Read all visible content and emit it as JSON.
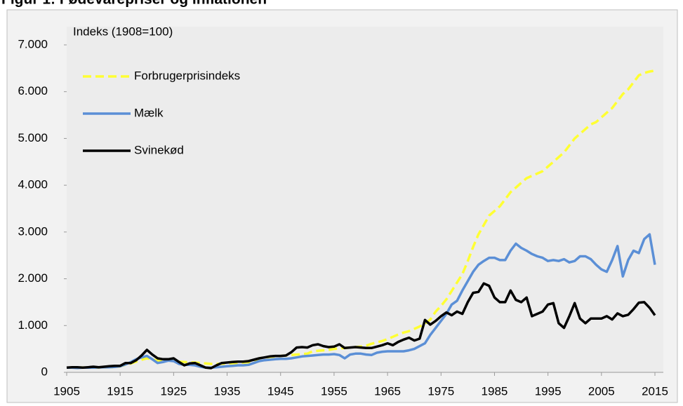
{
  "chart_data": {
    "type": "line",
    "title": "Figur 1: Fødevarepriser og inflationen",
    "ylabel": "Indeks (1908=100)",
    "x": [
      1905,
      1906,
      1907,
      1908,
      1909,
      1910,
      1911,
      1912,
      1913,
      1914,
      1915,
      1916,
      1917,
      1918,
      1919,
      1920,
      1921,
      1922,
      1923,
      1924,
      1925,
      1926,
      1927,
      1928,
      1929,
      1930,
      1931,
      1932,
      1933,
      1934,
      1935,
      1936,
      1937,
      1938,
      1939,
      1940,
      1941,
      1942,
      1943,
      1944,
      1945,
      1946,
      1947,
      1948,
      1949,
      1950,
      1951,
      1952,
      1953,
      1954,
      1955,
      1956,
      1957,
      1958,
      1959,
      1960,
      1961,
      1962,
      1963,
      1964,
      1965,
      1966,
      1967,
      1968,
      1969,
      1970,
      1971,
      1972,
      1973,
      1974,
      1975,
      1976,
      1977,
      1978,
      1979,
      1980,
      1981,
      1982,
      1983,
      1984,
      1985,
      1986,
      1987,
      1988,
      1989,
      1990,
      1991,
      1992,
      1993,
      1994,
      1995,
      1996,
      1997,
      1998,
      1999,
      2000,
      2001,
      2002,
      2003,
      2004,
      2005,
      2006,
      2007,
      2008,
      2009,
      2010,
      2011,
      2012,
      2013,
      2014,
      2015
    ],
    "series": [
      {
        "name": "Forbrugerprisindeks",
        "color": "#ffff33",
        "dashed": true,
        "values": [
          100,
          100,
          102,
          103,
          100,
          102,
          104,
          106,
          108,
          110,
          130,
          160,
          190,
          230,
          270,
          300,
          280,
          250,
          240,
          250,
          250,
          230,
          220,
          215,
          210,
          200,
          190,
          180,
          180,
          185,
          190,
          195,
          205,
          210,
          215,
          250,
          300,
          320,
          330,
          340,
          350,
          360,
          370,
          380,
          390,
          400,
          450,
          460,
          470,
          480,
          500,
          510,
          520,
          530,
          540,
          550,
          570,
          610,
          640,
          670,
          710,
          760,
          810,
          850,
          880,
          930,
          980,
          1040,
          1130,
          1300,
          1420,
          1560,
          1740,
          1920,
          2100,
          2380,
          2680,
          2950,
          3150,
          3350,
          3450,
          3550,
          3700,
          3850,
          3950,
          4050,
          4150,
          4200,
          4250,
          4300,
          4400,
          4500,
          4600,
          4700,
          4850,
          5000,
          5100,
          5200,
          5300,
          5350,
          5450,
          5550,
          5650,
          5800,
          5950,
          6050,
          6200,
          6350,
          6400,
          6430,
          6450
        ]
      },
      {
        "name": "Mælk",
        "color": "#5b8fd6",
        "dashed": false,
        "values": [
          100,
          100,
          95,
          100,
          100,
          100,
          105,
          110,
          110,
          115,
          130,
          170,
          220,
          280,
          320,
          350,
          280,
          200,
          220,
          250,
          240,
          180,
          160,
          160,
          150,
          120,
          100,
          100,
          110,
          120,
          130,
          140,
          150,
          150,
          160,
          200,
          240,
          260,
          270,
          280,
          290,
          290,
          300,
          320,
          340,
          350,
          360,
          370,
          380,
          380,
          390,
          370,
          300,
          380,
          400,
          400,
          380,
          370,
          420,
          440,
          450,
          450,
          450,
          450,
          470,
          500,
          560,
          620,
          800,
          950,
          1100,
          1250,
          1450,
          1530,
          1750,
          1950,
          2150,
          2300,
          2380,
          2450,
          2450,
          2400,
          2400,
          2600,
          2750,
          2660,
          2600,
          2530,
          2480,
          2450,
          2380,
          2400,
          2380,
          2420,
          2350,
          2380,
          2480,
          2480,
          2420,
          2300,
          2200,
          2150,
          2400,
          2700,
          2050,
          2400,
          2600,
          2550,
          2850,
          2950,
          2300
        ]
      },
      {
        "name": "Svinekød",
        "color": "#000000",
        "dashed": false,
        "values": [
          100,
          110,
          110,
          100,
          110,
          120,
          110,
          120,
          130,
          140,
          140,
          200,
          200,
          260,
          360,
          480,
          380,
          300,
          280,
          280,
          300,
          220,
          150,
          190,
          200,
          150,
          100,
          90,
          150,
          200,
          210,
          220,
          230,
          230,
          240,
          270,
          300,
          320,
          340,
          350,
          350,
          360,
          430,
          530,
          540,
          530,
          580,
          600,
          560,
          540,
          550,
          600,
          520,
          530,
          540,
          530,
          520,
          520,
          550,
          580,
          620,
          580,
          650,
          700,
          740,
          680,
          720,
          1120,
          1020,
          1100,
          1200,
          1280,
          1220,
          1300,
          1250,
          1500,
          1700,
          1720,
          1900,
          1850,
          1600,
          1500,
          1500,
          1750,
          1550,
          1500,
          1600,
          1200,
          1250,
          1300,
          1450,
          1480,
          1050,
          950,
          1200,
          1480,
          1150,
          1050,
          1150,
          1150,
          1150,
          1200,
          1130,
          1260,
          1200,
          1230,
          1350,
          1490,
          1500,
          1380,
          1220
        ]
      }
    ],
    "xlim": [
      1905,
      2015
    ],
    "xticks": [
      1905,
      1915,
      1925,
      1935,
      1945,
      1955,
      1965,
      1975,
      1985,
      1995,
      2005,
      2015
    ],
    "ylim": [
      0,
      7000
    ],
    "yticks": [
      0,
      {
        "value": 1000,
        "label": "1.000"
      },
      {
        "value": 2000,
        "label": "2.000"
      },
      {
        "value": 3000,
        "label": "3.000"
      },
      {
        "value": 4000,
        "label": "4.000"
      },
      {
        "value": 5000,
        "label": "5.000"
      },
      {
        "value": 6000,
        "label": "6.000"
      },
      {
        "value": 7000,
        "label": "7.000"
      }
    ],
    "grid": false,
    "legend": "upper left"
  }
}
